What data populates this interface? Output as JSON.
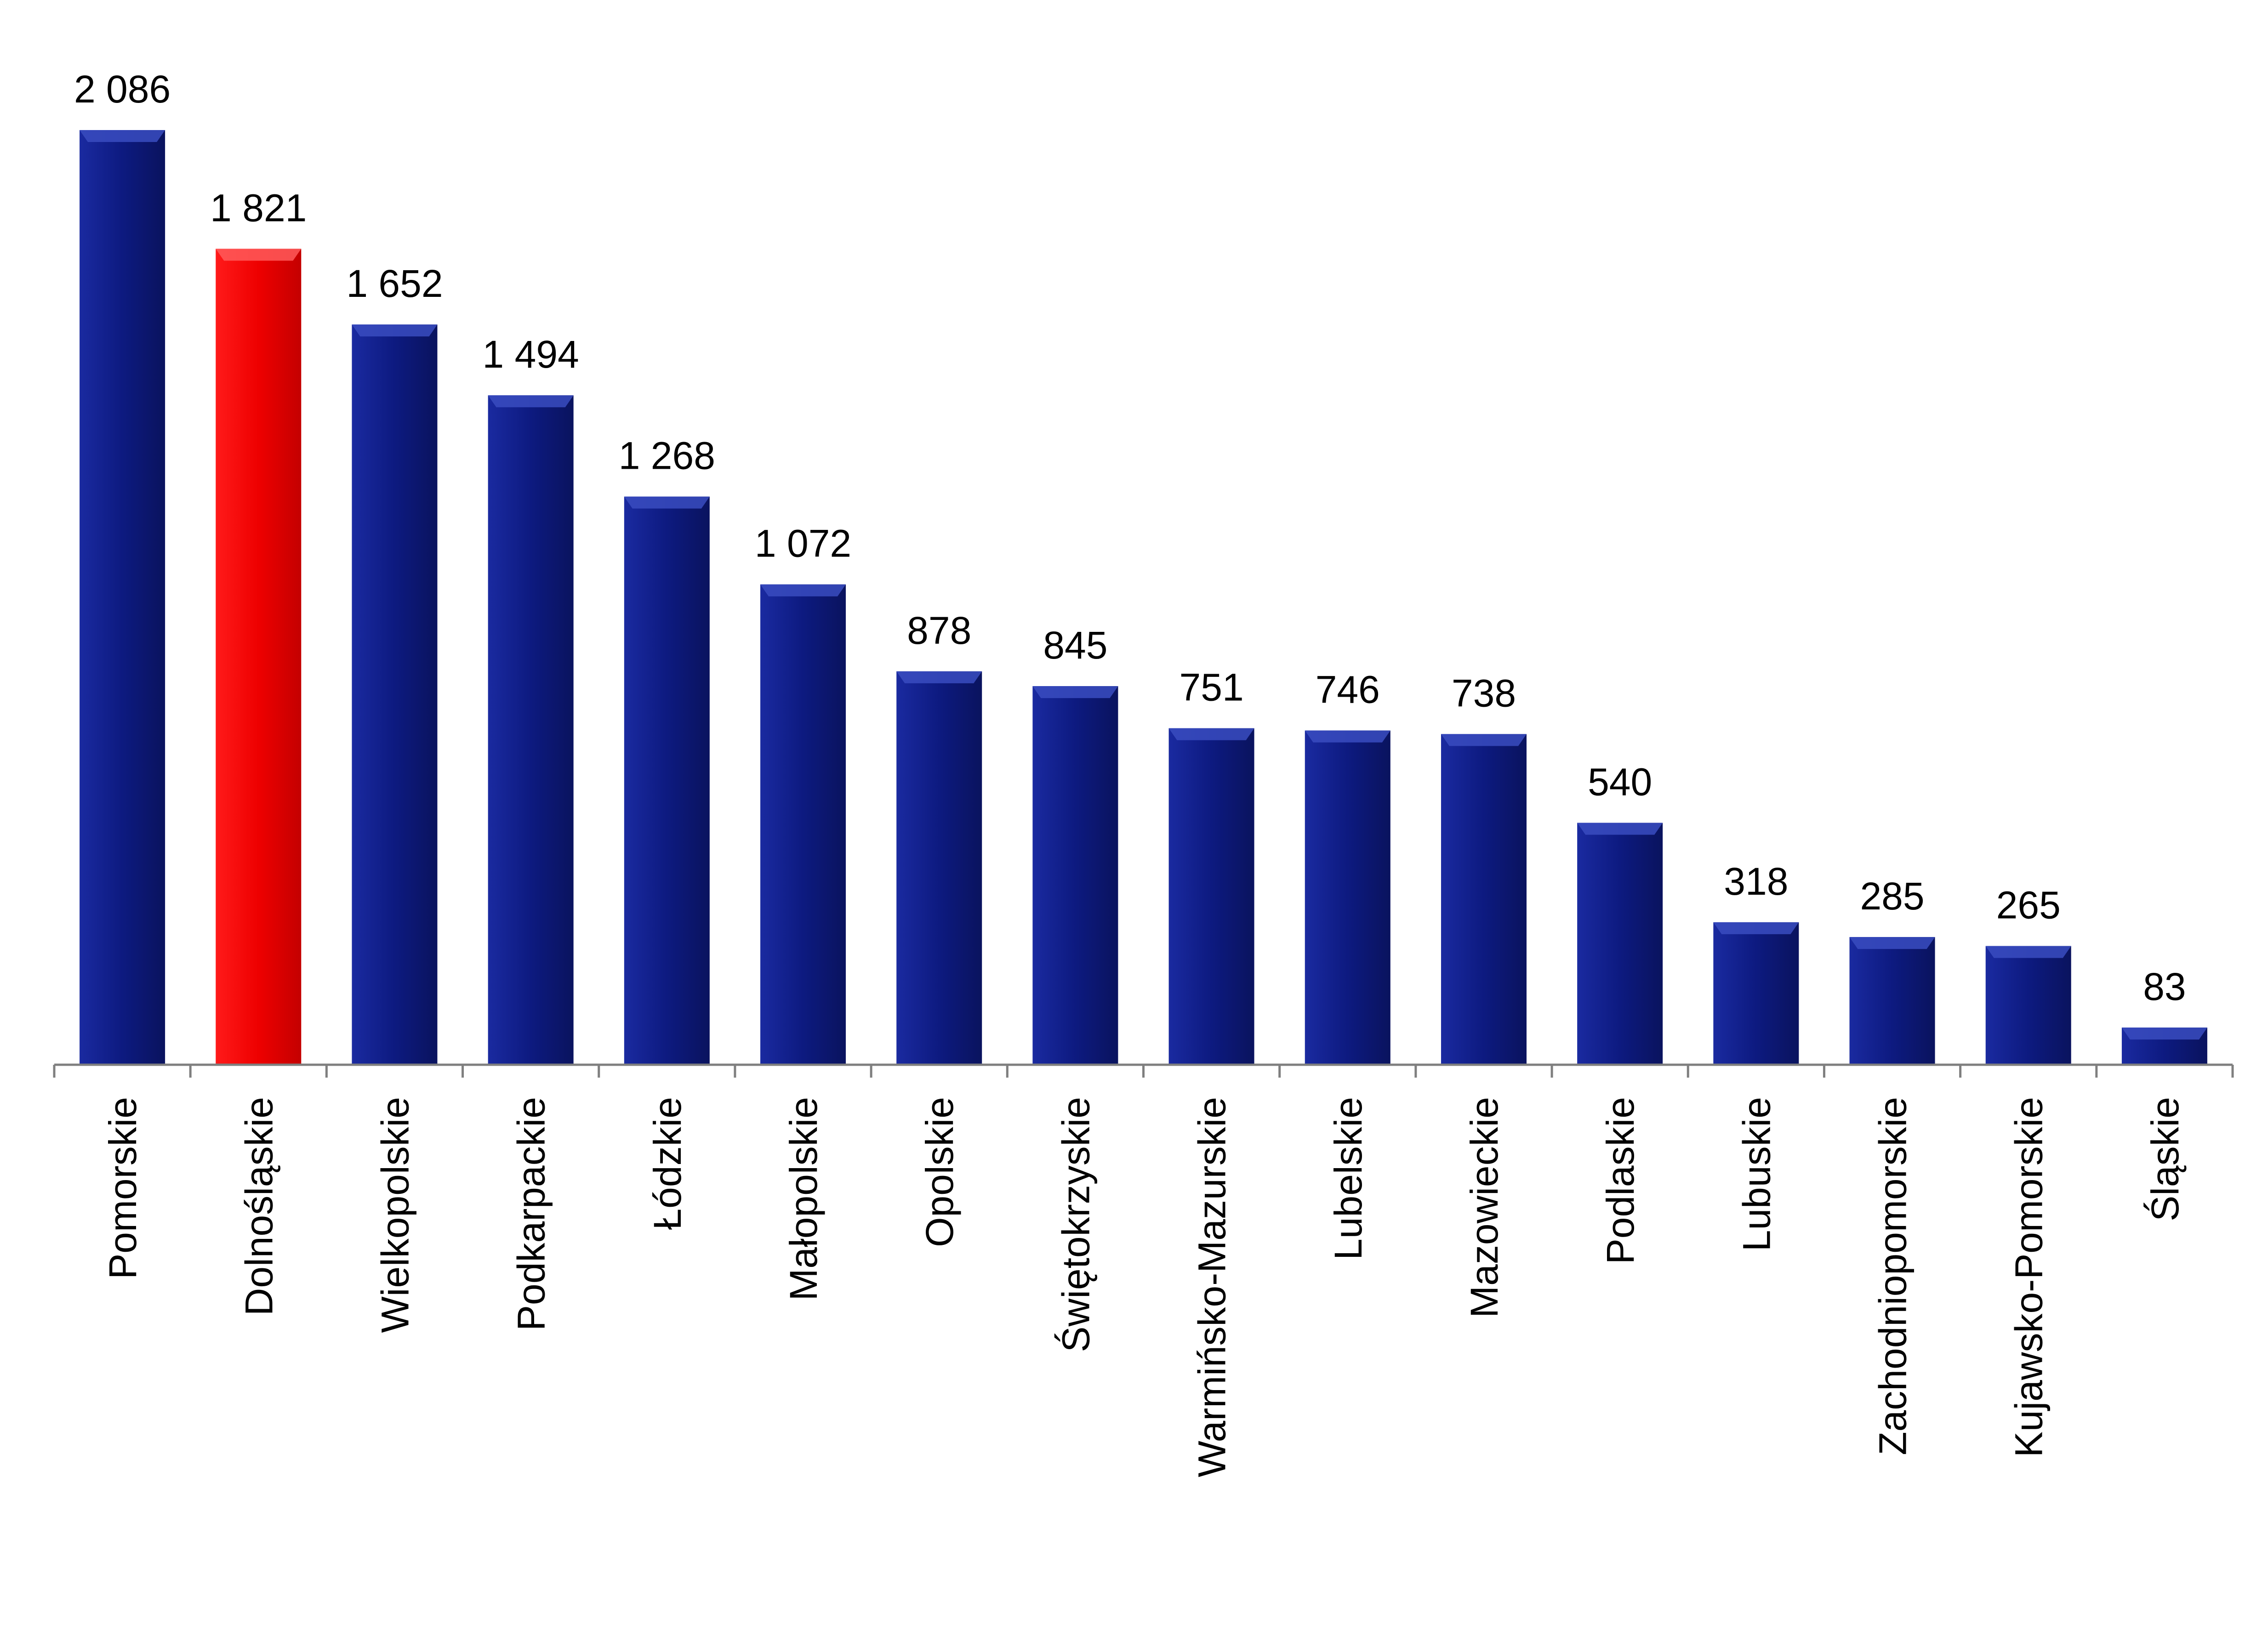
{
  "chart_data": {
    "type": "bar",
    "categories": [
      "Pomorskie",
      "Dolnośląskie",
      "Wielkopolskie",
      "Podkarpackie",
      "Łódzkie",
      "Małopolskie",
      "Opolskie",
      "Świętokrzyskie",
      "Warmińsko-Mazurskie",
      "Lubelskie",
      "Mazowieckie",
      "Podlaskie",
      "Lubuskie",
      "Zachodniopomorskie",
      "Kujawsko-Pomorskie",
      "Śląskie"
    ],
    "values": [
      2086,
      1821,
      1652,
      1494,
      1268,
      1072,
      878,
      845,
      751,
      746,
      738,
      540,
      318,
      285,
      265,
      83
    ],
    "value_labels": [
      "2 086",
      "1 821",
      "1 652",
      "1 494",
      "1 268",
      "1 072",
      "878",
      "845",
      "751",
      "746",
      "738",
      "540",
      "318",
      "285",
      "265",
      "83"
    ],
    "highlight_category": "Dolnośląskie",
    "colors": {
      "bar": "#0d1a80",
      "highlight": "#ee0000",
      "axis": "#7f7f7f"
    },
    "ylim": [
      0,
      2086
    ],
    "grid": false,
    "legend": "none"
  }
}
